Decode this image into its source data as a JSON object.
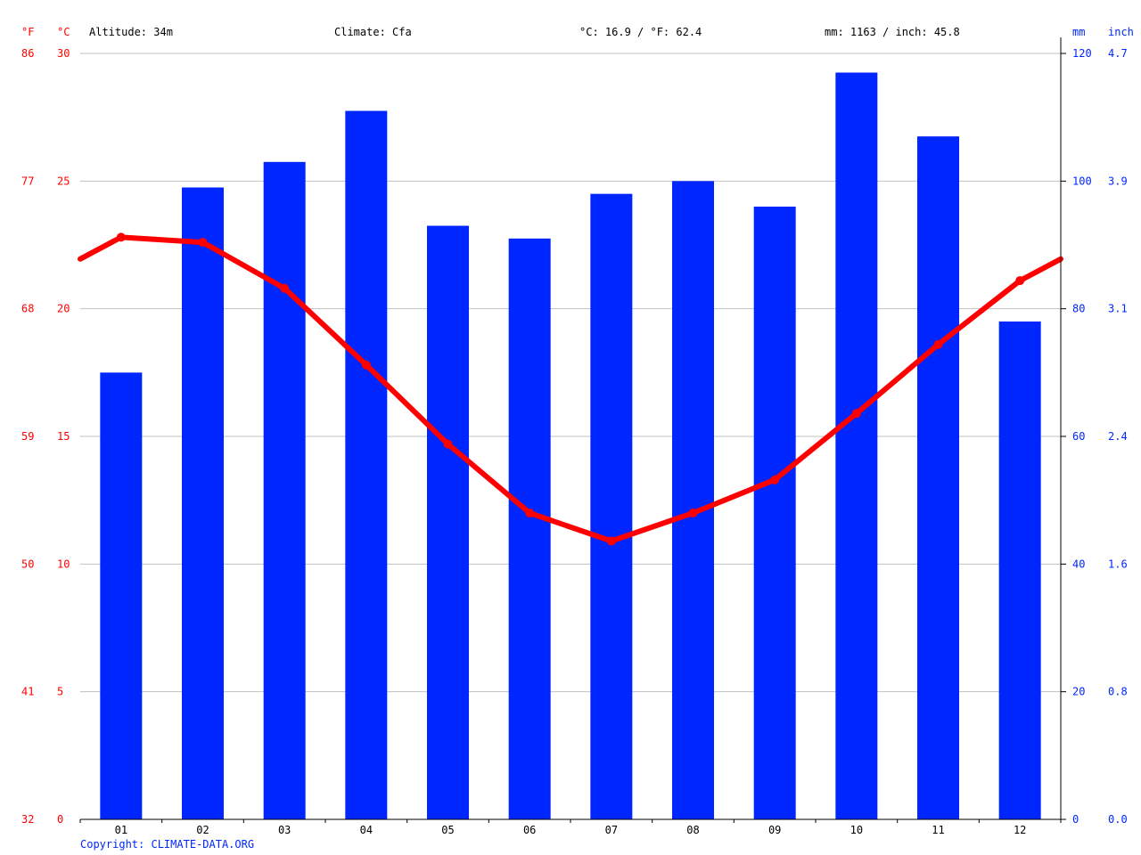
{
  "header": {
    "altitude": "Altitude: 34m",
    "climate": "Climate: Cfa",
    "avg_temp": "°C: 16.9 / °F: 62.4",
    "avg_precip": "mm: 1163 / inch: 45.8"
  },
  "axis_units": {
    "fahrenheit": "°F",
    "celsius": "°C",
    "mm": "mm",
    "inch": "inch"
  },
  "copyright": "Copyright: CLIMATE-DATA.ORG",
  "colors": {
    "precip_bar": "#0026ff",
    "temp_line": "#ff0000",
    "temp_axis": "#ff0000",
    "precip_axis": "#0026ff",
    "grid": "#c0c0c0",
    "text": "#000000"
  },
  "chart_data": {
    "type": "bar",
    "categories": [
      "01",
      "02",
      "03",
      "04",
      "05",
      "06",
      "07",
      "08",
      "09",
      "10",
      "11",
      "12"
    ],
    "series": [
      {
        "type": "bar",
        "axis": "right",
        "values": [
          70,
          99,
          103,
          111,
          93,
          91,
          98,
          100,
          96,
          117,
          107,
          78
        ]
      },
      {
        "type": "line",
        "axis": "left",
        "values": [
          22.8,
          22.6,
          20.8,
          17.8,
          14.7,
          12.0,
          10.9,
          12.0,
          13.3,
          15.9,
          18.6,
          21.1
        ]
      }
    ],
    "left_axis": {
      "celsius_ticks": [
        "30",
        "25",
        "20",
        "15",
        "10",
        "5",
        "0"
      ],
      "fahrenheit_ticks": [
        "86",
        "77",
        "68",
        "59",
        "50",
        "41",
        "32"
      ],
      "ylim": [
        0,
        30
      ]
    },
    "right_axis": {
      "mm_ticks": [
        "120",
        "100",
        "80",
        "60",
        "40",
        "20",
        "0"
      ],
      "inch_ticks": [
        "4.7",
        "3.9",
        "3.1",
        "2.4",
        "1.6",
        "0.8",
        "0.0"
      ],
      "ylim": [
        0,
        120
      ]
    },
    "grid": true
  }
}
